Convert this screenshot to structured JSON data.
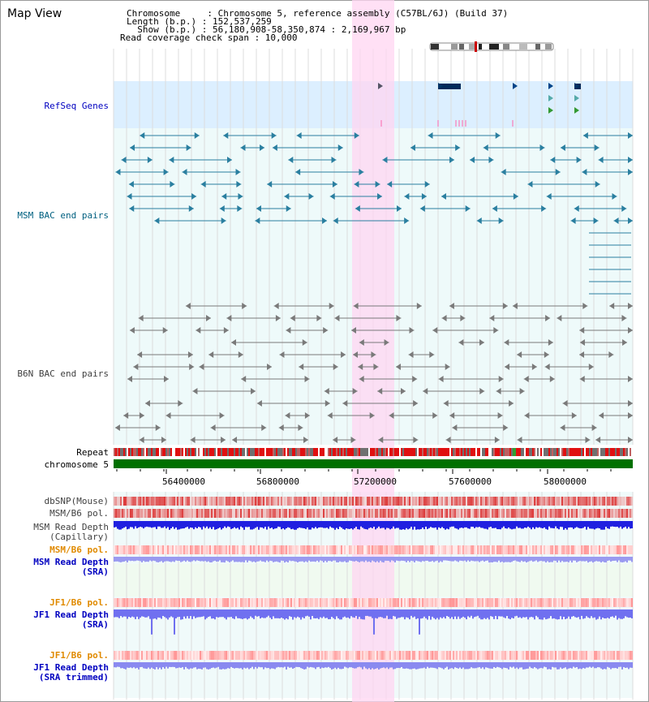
{
  "app": {
    "title": "Map View"
  },
  "header": {
    "chromosome": "Chromosome     : Chromosome 5, reference assembly (C57BL/6J) (Build 37)",
    "length": "Length (b.p.) : 152,537,259",
    "show": "  Show (b.p.) : 56,180,908-58,350,874 : 2,169,967 bp",
    "coverage": "Read coverage check span : 10,000"
  },
  "tracks": {
    "refseq": "RefSeq Genes",
    "msm_bac": "MSM BAC end pairs",
    "b6n_bac": "B6N BAC end pairs",
    "repeat": "Repeat",
    "chromosome": "chromosome 5",
    "dbsnp": "dbSNP(Mouse)",
    "msm_b6_pol_1": "MSM/B6 pol.",
    "msm_read_depth_cap_1": "MSM Read Depth",
    "msm_read_depth_cap_2": "(Capillary)",
    "msm_b6_pol_2": "MSM/B6 pol.",
    "msm_read_depth_sra_1": "MSM Read Depth",
    "msm_read_depth_sra_2": "(SRA)",
    "jf1_b6_pol_1": "JF1/B6 pol.",
    "jf1_read_depth_sra_1": "JF1 Read Depth",
    "jf1_read_depth_sra_2": "(SRA)",
    "jf1_b6_pol_2": "JF1/B6 pol.",
    "jf1_read_depth_trim_1": "JF1 Read Depth",
    "jf1_read_depth_trim_2": "(SRA trimmed)"
  },
  "axis": {
    "ticks": [
      "56400000",
      "56800000",
      "57200000",
      "57600000",
      "58000000"
    ]
  },
  "colors": {
    "refseq_bg": "#dcefff",
    "bac_bg": "#eefafa",
    "highlight": "#ffd6f2",
    "msm_label": "#006080",
    "refseq_label": "#0000c0",
    "b6n_label": "#404040",
    "pol_label_orange": "#e08a00",
    "depth_label_blue": "#0000c0",
    "chromosome_green": "#007000"
  }
}
